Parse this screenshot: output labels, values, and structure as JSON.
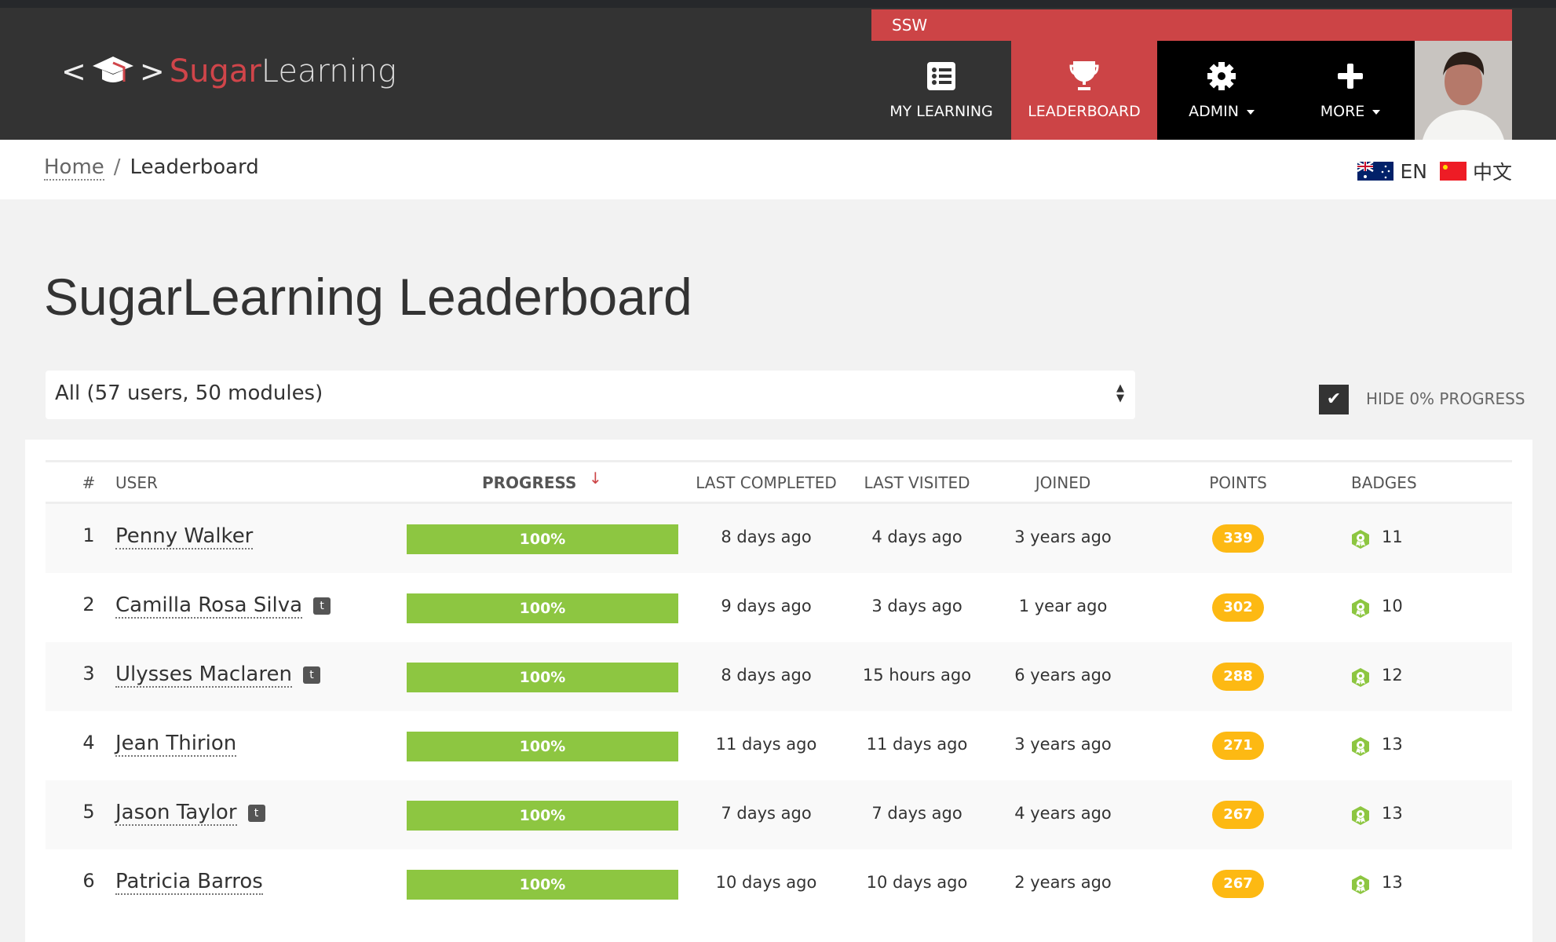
{
  "header": {
    "logo_left": "Sugar",
    "logo_right": "Learning",
    "org": "SSW",
    "nav": [
      {
        "label": "MY LEARNING",
        "icon": "list-icon"
      },
      {
        "label": "LEADERBOARD",
        "icon": "trophy-icon",
        "active": true
      },
      {
        "label": "ADMIN",
        "icon": "gear-icon",
        "dropdown": true
      },
      {
        "label": "MORE",
        "icon": "plus-icon",
        "dropdown": true
      }
    ]
  },
  "breadcrumb": {
    "home": "Home",
    "separator": "/",
    "current": "Leaderboard"
  },
  "languages": {
    "en": "EN",
    "zh": "中文"
  },
  "page_title": "SugarLearning Leaderboard",
  "filter": {
    "selected": "All (57 users, 50 modules)"
  },
  "hide_zero": {
    "label": "HIDE 0% PROGRESS",
    "checked": true
  },
  "columns": {
    "rank": "#",
    "user": "USER",
    "progress": "PROGRESS",
    "last_completed": "LAST COMPLETED",
    "last_visited": "LAST VISITED",
    "joined": "JOINED",
    "points": "POINTS",
    "badges": "BADGES"
  },
  "sort": {
    "column": "progress",
    "direction": "descending"
  },
  "colors": {
    "brand": "#cc4446",
    "progress": "#8dc641",
    "points": "#fdb913"
  },
  "rows": [
    {
      "rank": "1",
      "user": "Penny Walker",
      "twitter": false,
      "progress": "100%",
      "last_completed": "8 days ago",
      "last_visited": "4 days ago",
      "joined": "3 years ago",
      "points": "339",
      "badges": "11"
    },
    {
      "rank": "2",
      "user": "Camilla Rosa Silva",
      "twitter": true,
      "progress": "100%",
      "last_completed": "9 days ago",
      "last_visited": "3 days ago",
      "joined": "1 year ago",
      "points": "302",
      "badges": "10"
    },
    {
      "rank": "3",
      "user": "Ulysses Maclaren",
      "twitter": true,
      "progress": "100%",
      "last_completed": "8 days ago",
      "last_visited": "15 hours ago",
      "joined": "6 years ago",
      "points": "288",
      "badges": "12"
    },
    {
      "rank": "4",
      "user": "Jean Thirion",
      "twitter": false,
      "progress": "100%",
      "last_completed": "11 days ago",
      "last_visited": "11 days ago",
      "joined": "3 years ago",
      "points": "271",
      "badges": "13"
    },
    {
      "rank": "5",
      "user": "Jason Taylor",
      "twitter": true,
      "progress": "100%",
      "last_completed": "7 days ago",
      "last_visited": "7 days ago",
      "joined": "4 years ago",
      "points": "267",
      "badges": "13"
    },
    {
      "rank": "6",
      "user": "Patricia Barros",
      "twitter": false,
      "progress": "100%",
      "last_completed": "10 days ago",
      "last_visited": "10 days ago",
      "joined": "2 years ago",
      "points": "267",
      "badges": "13"
    }
  ]
}
